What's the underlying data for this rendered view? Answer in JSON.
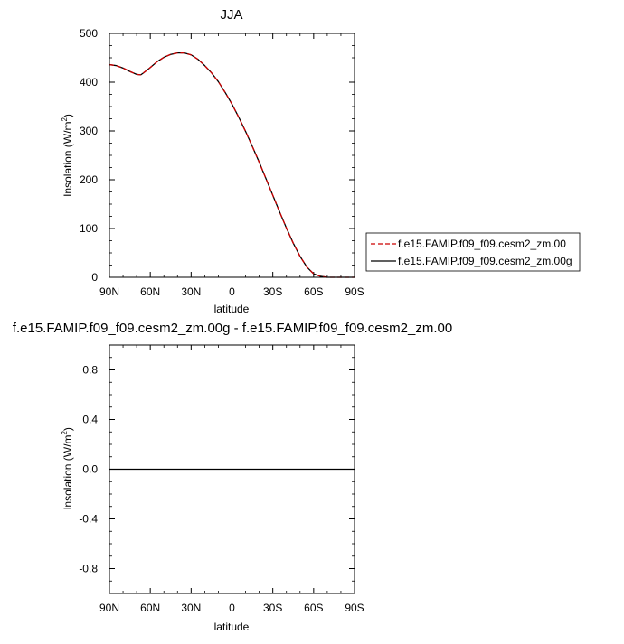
{
  "chart_data": [
    {
      "type": "line",
      "title": "JJA",
      "xlabel": "latitude",
      "ylabel": "Insolation (W/m",
      "ylabel_sup": "2",
      "ylabel_close": ")",
      "xlim": [
        90,
        -90
      ],
      "ylim": [
        0,
        500
      ],
      "x_ticks": [
        90,
        60,
        30,
        0,
        -30,
        -60,
        -90
      ],
      "x_tick_labels": [
        "90N",
        "60N",
        "30N",
        "0",
        "30S",
        "60S",
        "90S"
      ],
      "y_ticks": [
        0,
        100,
        200,
        300,
        400,
        500
      ],
      "y_tick_labels": [
        "0",
        "100",
        "200",
        "300",
        "400",
        "500"
      ],
      "legend_position": "right",
      "series": [
        {
          "name": "f.e15.FAMIP.f09_f09.cesm2_zm.00",
          "color": "#cc0000",
          "dash": "dashed",
          "x": [
            90,
            85,
            80,
            75,
            70,
            67,
            65,
            60,
            55,
            50,
            45,
            40,
            35,
            30,
            25,
            20,
            15,
            10,
            5,
            0,
            -5,
            -10,
            -15,
            -20,
            -25,
            -30,
            -35,
            -40,
            -45,
            -50,
            -55,
            -60,
            -65,
            -70,
            -73,
            -75,
            -80,
            -85,
            -90
          ],
          "y": [
            436,
            434,
            429,
            422,
            416,
            415,
            419,
            430,
            442,
            451,
            457,
            460,
            460,
            456,
            447,
            434,
            419,
            401,
            379,
            355,
            328,
            299,
            268,
            236,
            202,
            168,
            134,
            101,
            70,
            43,
            21,
            7,
            2,
            0,
            0,
            0,
            0,
            0,
            0
          ]
        },
        {
          "name": "f.e15.FAMIP.f09_f09.cesm2_zm.00g",
          "color": "#000000",
          "dash": "solid",
          "x": [
            90,
            85,
            80,
            75,
            70,
            67,
            65,
            60,
            55,
            50,
            45,
            40,
            35,
            30,
            25,
            20,
            15,
            10,
            5,
            0,
            -5,
            -10,
            -15,
            -20,
            -25,
            -30,
            -35,
            -40,
            -45,
            -50,
            -55,
            -60,
            -65,
            -70,
            -73,
            -75,
            -80,
            -85,
            -90
          ],
          "y": [
            436,
            434,
            429,
            422,
            416,
            415,
            419,
            430,
            442,
            451,
            457,
            460,
            460,
            456,
            447,
            434,
            419,
            401,
            379,
            355,
            328,
            299,
            268,
            236,
            202,
            168,
            134,
            101,
            70,
            43,
            21,
            7,
            2,
            0,
            0,
            0,
            0,
            0,
            0
          ]
        }
      ]
    },
    {
      "type": "line",
      "title": "f.e15.FAMIP.f09_f09.cesm2_zm.00g - f.e15.FAMIP.f09_f09.cesm2_zm.00",
      "xlabel": "latitude",
      "ylabel": "Insolation (W/m",
      "ylabel_sup": "2",
      "ylabel_close": ")",
      "xlim": [
        90,
        -90
      ],
      "ylim": [
        -1,
        1
      ],
      "x_ticks": [
        90,
        60,
        30,
        0,
        -30,
        -60,
        -90
      ],
      "x_tick_labels": [
        "90N",
        "60N",
        "30N",
        "0",
        "30S",
        "60S",
        "90S"
      ],
      "y_ticks": [
        -0.8,
        -0.4,
        0.0,
        0.4,
        0.8
      ],
      "y_tick_labels": [
        "-0.8",
        "-0.4",
        "0.0",
        "0.4",
        "0.8"
      ],
      "series": [
        {
          "color": "#000000",
          "dash": "solid",
          "x": [
            90,
            -90
          ],
          "y": [
            0,
            0
          ]
        }
      ]
    }
  ]
}
